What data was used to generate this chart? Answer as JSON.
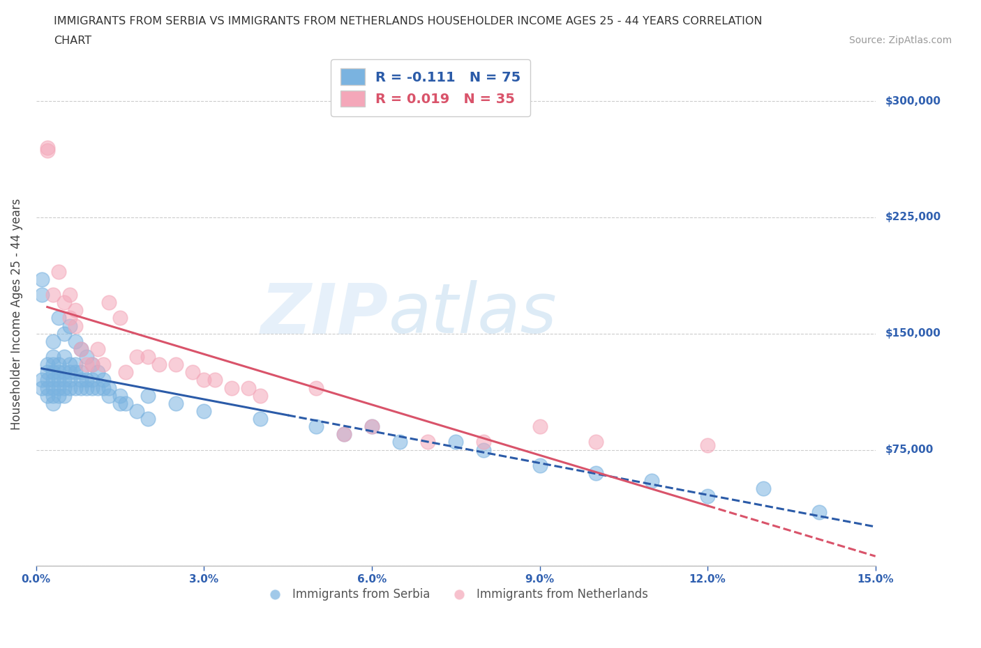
{
  "title_line1": "IMMIGRANTS FROM SERBIA VS IMMIGRANTS FROM NETHERLANDS HOUSEHOLDER INCOME AGES 25 - 44 YEARS CORRELATION",
  "title_line2": "CHART",
  "source": "Source: ZipAtlas.com",
  "ylabel": "Householder Income Ages 25 - 44 years",
  "xlim": [
    0.0,
    0.15
  ],
  "ylim": [
    0,
    325000
  ],
  "yticks": [
    0,
    75000,
    150000,
    225000,
    300000
  ],
  "ytick_labels": [
    "",
    "$75,000",
    "$150,000",
    "$225,000",
    "$300,000"
  ],
  "xticks": [
    0.0,
    0.03,
    0.06,
    0.09,
    0.12,
    0.15
  ],
  "xtick_labels": [
    "0.0%",
    "3.0%",
    "6.0%",
    "9.0%",
    "12.0%",
    "15.0%"
  ],
  "serbia_R": -0.111,
  "serbia_N": 75,
  "netherlands_R": 0.019,
  "netherlands_N": 35,
  "serbia_color": "#7ab3e0",
  "netherlands_color": "#f4a7b9",
  "serbia_line_color": "#2b5ba8",
  "netherlands_line_color": "#d9536a",
  "watermark": "ZIPatlas",
  "background_color": "#ffffff",
  "grid_color": "#cccccc",
  "serbia_scatter_x": [
    0.001,
    0.001,
    0.001,
    0.001,
    0.002,
    0.002,
    0.002,
    0.002,
    0.002,
    0.003,
    0.003,
    0.003,
    0.003,
    0.003,
    0.003,
    0.003,
    0.004,
    0.004,
    0.004,
    0.004,
    0.004,
    0.005,
    0.005,
    0.005,
    0.005,
    0.005,
    0.006,
    0.006,
    0.006,
    0.006,
    0.007,
    0.007,
    0.007,
    0.008,
    0.008,
    0.008,
    0.009,
    0.009,
    0.01,
    0.01,
    0.011,
    0.012,
    0.013,
    0.015,
    0.02,
    0.025,
    0.03,
    0.04,
    0.05,
    0.055,
    0.06,
    0.065,
    0.075,
    0.08,
    0.09,
    0.1,
    0.11,
    0.12,
    0.13,
    0.14,
    0.003,
    0.004,
    0.005,
    0.006,
    0.007,
    0.008,
    0.009,
    0.01,
    0.011,
    0.012,
    0.013,
    0.015,
    0.016,
    0.018,
    0.02
  ],
  "serbia_scatter_y": [
    185000,
    175000,
    120000,
    115000,
    130000,
    125000,
    120000,
    115000,
    110000,
    135000,
    130000,
    125000,
    120000,
    115000,
    110000,
    105000,
    130000,
    125000,
    120000,
    115000,
    110000,
    135000,
    125000,
    120000,
    115000,
    110000,
    130000,
    125000,
    120000,
    115000,
    130000,
    125000,
    115000,
    125000,
    120000,
    115000,
    120000,
    115000,
    120000,
    115000,
    115000,
    115000,
    110000,
    105000,
    110000,
    105000,
    100000,
    95000,
    90000,
    85000,
    90000,
    80000,
    80000,
    75000,
    65000,
    60000,
    55000,
    45000,
    50000,
    35000,
    145000,
    160000,
    150000,
    155000,
    145000,
    140000,
    135000,
    130000,
    125000,
    120000,
    115000,
    110000,
    105000,
    100000,
    95000
  ],
  "netherlands_scatter_x": [
    0.002,
    0.002,
    0.003,
    0.004,
    0.005,
    0.006,
    0.006,
    0.007,
    0.007,
    0.008,
    0.009,
    0.01,
    0.011,
    0.012,
    0.013,
    0.015,
    0.016,
    0.018,
    0.02,
    0.022,
    0.025,
    0.028,
    0.03,
    0.032,
    0.035,
    0.038,
    0.04,
    0.05,
    0.055,
    0.06,
    0.07,
    0.08,
    0.09,
    0.1,
    0.12
  ],
  "netherlands_scatter_y": [
    270000,
    268000,
    175000,
    190000,
    170000,
    175000,
    160000,
    165000,
    155000,
    140000,
    130000,
    130000,
    140000,
    130000,
    170000,
    160000,
    125000,
    135000,
    135000,
    130000,
    130000,
    125000,
    120000,
    120000,
    115000,
    115000,
    110000,
    115000,
    85000,
    90000,
    80000,
    80000,
    90000,
    80000,
    78000
  ]
}
